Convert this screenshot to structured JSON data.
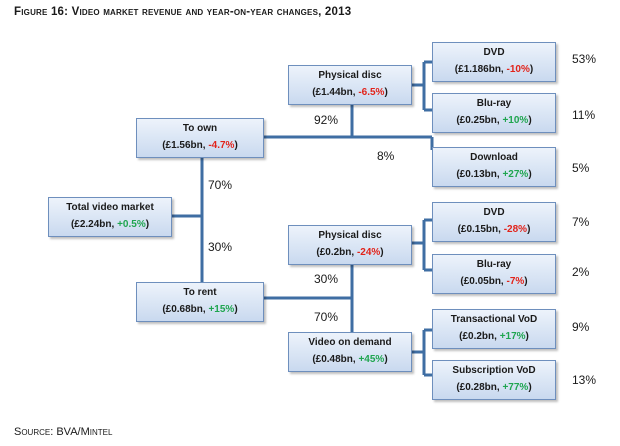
{
  "title": "Figure 16: Video market revenue and year-on-year changes, 2013",
  "source": "Source: BVA/Mintel",
  "colors": {
    "negative": "#e2231a",
    "positive": "#1fa54f",
    "box_border": "#6e8fbd",
    "connector": "#3f6ea3"
  },
  "nodes": {
    "total": {
      "name": "Total video market",
      "value": "(£2.24bn, ",
      "change": "+0.5%",
      "close": ")"
    },
    "own": {
      "name": "To own",
      "value": "(£1.56bn, ",
      "change": "-4.7%",
      "close": ")"
    },
    "rent": {
      "name": "To rent",
      "value": "(£0.68bn, ",
      "change": "+15%",
      "close": ")"
    },
    "own_physical": {
      "name": "Physical disc",
      "value": "(£1.44bn, ",
      "change": "-6.5%",
      "close": ")"
    },
    "rent_physical": {
      "name": "Physical disc",
      "value": "(£0.2bn, ",
      "change": "-24%",
      "close": ")"
    },
    "vod": {
      "name": "Video on demand",
      "value": "(£0.48bn, ",
      "change": "+45%",
      "close": ")"
    },
    "own_dvd": {
      "name": "DVD",
      "value": "(£1.186bn, ",
      "change": "-10%",
      "close": ")"
    },
    "own_bluray": {
      "name": "Blu-ray",
      "value": "(£0.25bn, ",
      "change": "+10%",
      "close": ")"
    },
    "download": {
      "name": "Download",
      "value": "(£0.13bn, ",
      "change": "+27%",
      "close": ")"
    },
    "rent_dvd": {
      "name": "DVD",
      "value": "(£0.15bn, ",
      "change": "-28%",
      "close": ")"
    },
    "rent_bluray": {
      "name": "Blu-ray",
      "value": "(£0.05bn, ",
      "change": "-7%",
      "close": ")"
    },
    "tvod": {
      "name": "Transactional VoD",
      "value": "(£0.2bn, ",
      "change": "+17%",
      "close": ")"
    },
    "svod": {
      "name": "Subscription VoD",
      "value": "(£0.28bn, ",
      "change": "+77%",
      "close": ")"
    }
  },
  "splits": {
    "own": "70%",
    "rent": "30%",
    "own_physical": "92%",
    "download": "8%",
    "rent_physical": "30%",
    "vod": "70%"
  },
  "shares": {
    "own_dvd": "53%",
    "own_bluray": "11%",
    "download": "5%",
    "rent_dvd": "7%",
    "rent_bluray": "2%",
    "tvod": "9%",
    "svod": "13%"
  }
}
